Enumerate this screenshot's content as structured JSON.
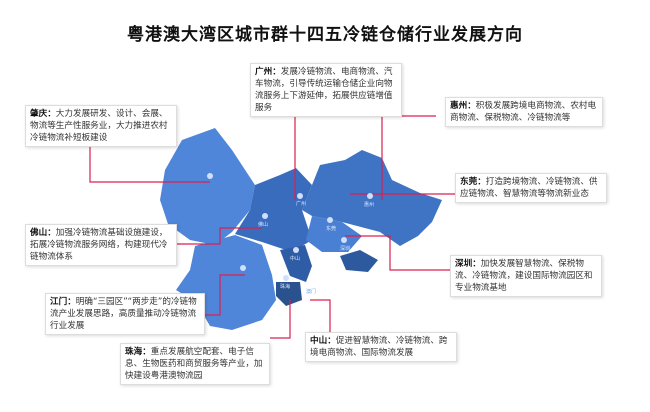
{
  "title": "粤港澳大湾区城市群十四五冷链仓储行业发展方向",
  "colors": {
    "connector": "#d9204f",
    "map_light": "#4f86d9",
    "map_mid": "#3f73c4",
    "map_dark": "#2d5a9e"
  },
  "cities": [
    {
      "key": "zhaoqing",
      "name": "肇庆：",
      "text": "大力发展研发、设计、会展、物流等生产性服务业，大力推进农村冷链物流补短板建设"
    },
    {
      "key": "guangzhou",
      "name": "广州：",
      "text": "发展冷链物流、电商物流、汽车物流，引导传统运输仓储企业向物流服务上下游延伸，拓展供应链增值服务"
    },
    {
      "key": "huizhou",
      "name": "惠州：",
      "text": "积极发展跨境电商物流、农村电商物流、保税物流、冷链物流等"
    },
    {
      "key": "dongguan",
      "name": "东莞：",
      "text": "打造跨境物流、冷链物流、供应链物流、智慧物流等物流新业态"
    },
    {
      "key": "foshan",
      "name": "佛山：",
      "text": "加强冷链物流基础设施建设，拓展冷链物流服务网络，构建现代冷链物流体系"
    },
    {
      "key": "shenzhen",
      "name": "深圳：",
      "text": "加快发展智慧物流、保税物流、冷链物流，建设国际物流园区和专业物流基地"
    },
    {
      "key": "jiangmen",
      "name": "江门：",
      "text": "明确“三园区”“两步走”的冷链物流产业发展思路，高质量推动冷链物流行业发展"
    },
    {
      "key": "zhuhai",
      "name": "珠海：",
      "text": "重点发展航空配套、电子信息、生物医药和商贸服务等产业，加快建设粤港澳物流园"
    },
    {
      "key": "zhongshan",
      "name": "中山：",
      "text": "促进智慧物流、冷链物流、跨境电商物流、国际物流发展"
    }
  ],
  "map_labels": {
    "guangzhou": "广州",
    "foshan": "佛山",
    "huizhou": "惠州",
    "dongguan": "东莞",
    "shenzhen": "深圳",
    "zhongshan": "中山",
    "zhuhai": "珠海",
    "macau": "澳门"
  }
}
